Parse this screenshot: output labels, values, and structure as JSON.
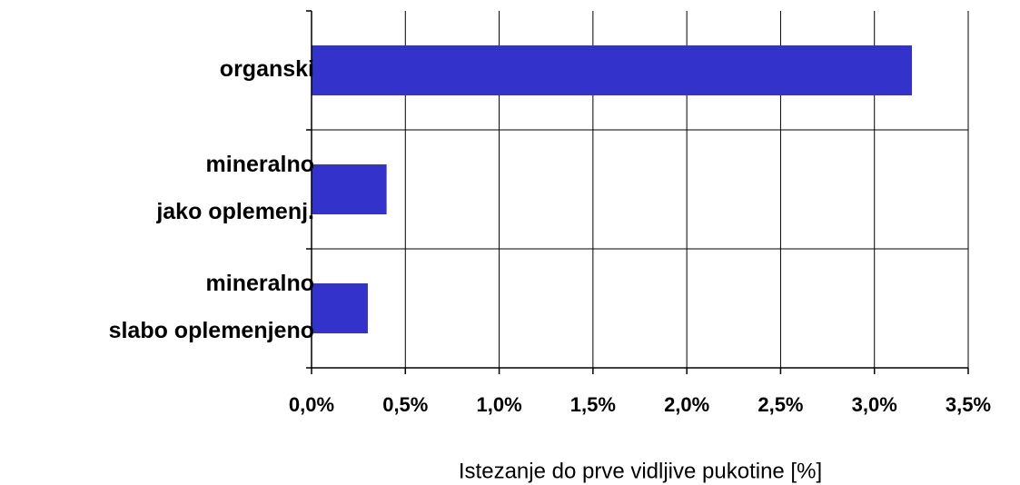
{
  "chart_data": {
    "type": "bar",
    "orientation": "horizontal",
    "categories": [
      [
        "organski"
      ],
      [
        "mineralno",
        "jako oplemenj."
      ],
      [
        "mineralno",
        "slabo oplemenjeno"
      ]
    ],
    "values": [
      3.2,
      0.4,
      0.3
    ],
    "color": "#3333cc",
    "x_label": "Istezanje do prve vidljive pukotine [%]",
    "xlim": [
      0,
      3.5
    ],
    "xticks": [
      {
        "value": 0,
        "label": "0,0%"
      },
      {
        "value": 0.5,
        "label": "0,5%"
      },
      {
        "value": 1,
        "label": "1,0%"
      },
      {
        "value": 1.5,
        "label": "1,5%"
      },
      {
        "value": 2,
        "label": "2,0%"
      },
      {
        "value": 2.5,
        "label": "2,5%"
      },
      {
        "value": 3,
        "label": "3,0%"
      },
      {
        "value": 3.5,
        "label": "3,5%"
      }
    ],
    "grid": true
  }
}
